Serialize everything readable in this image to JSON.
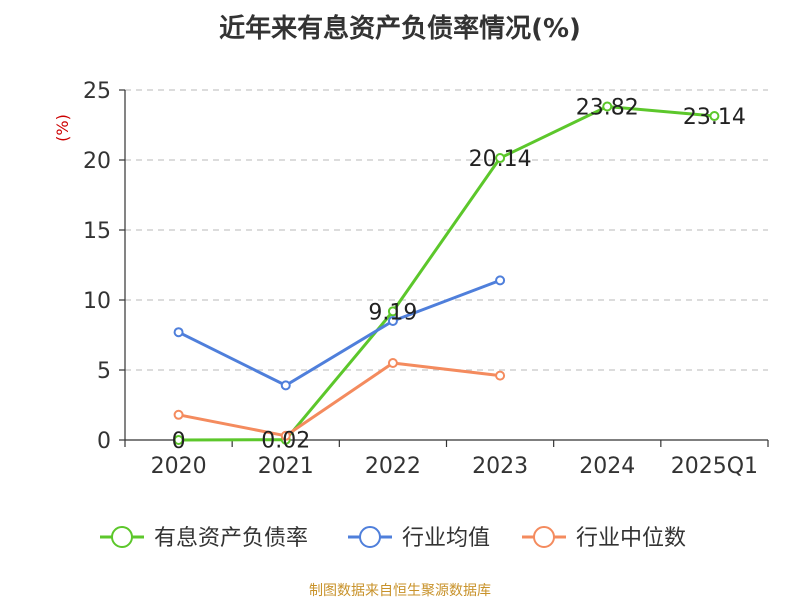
{
  "chart_data": {
    "type": "line",
    "title": "近年来有息资产负债率情况(%)",
    "ylabel": "(%)",
    "xlabel": "",
    "categories": [
      "2020",
      "2021",
      "2022",
      "2023",
      "2024",
      "2025Q1"
    ],
    "yticks": [
      "0",
      "5",
      "10",
      "15",
      "20",
      "25"
    ],
    "ylim": [
      0,
      25
    ],
    "grid": true,
    "legend_position": "bottom",
    "series": [
      {
        "name": "有息资产负债率",
        "color": "#5cc72b",
        "values": [
          0,
          0.02,
          9.19,
          20.14,
          23.82,
          23.14
        ],
        "labels": [
          "0",
          "0.02",
          "9.19",
          "20.14",
          "23.82",
          "23.14"
        ]
      },
      {
        "name": "行业均值",
        "color": "#4f7fdb",
        "values": [
          7.7,
          3.9,
          8.5,
          11.4,
          null,
          null
        ]
      },
      {
        "name": "行业中位数",
        "color": "#f48b5e",
        "values": [
          1.8,
          0.3,
          5.5,
          4.6,
          null,
          null
        ]
      }
    ]
  },
  "source": "制图数据来自恒生聚源数据库"
}
